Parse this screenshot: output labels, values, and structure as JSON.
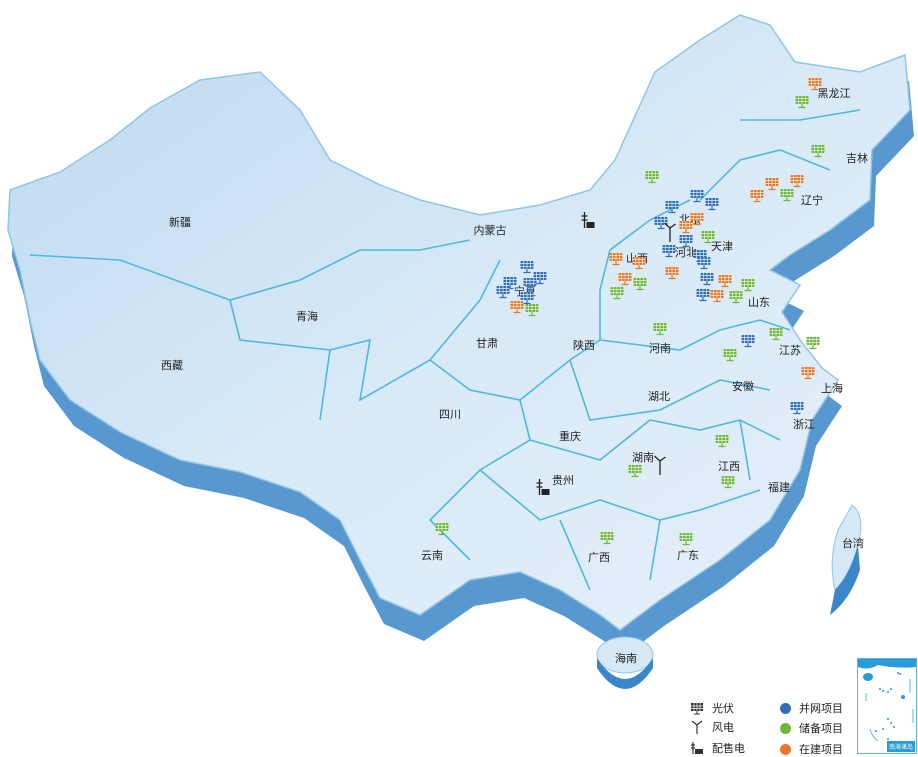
{
  "colors": {
    "grid": "#2f6fb8",
    "reserve": "#6bb83a",
    "building": "#e8782a",
    "land": "#d6e8f6",
    "border": "#4fb8e0",
    "edge": "#3b86c8"
  },
  "provinces": [
    "新疆",
    "西藏",
    "青海",
    "甘肃",
    "内蒙古",
    "宁夏",
    "陕西",
    "山西",
    "河北",
    "北京",
    "天津",
    "辽宁",
    "吉林",
    "黑龙江",
    "山东",
    "河南",
    "江苏",
    "安徽",
    "上海",
    "浙江",
    "湖北",
    "四川",
    "重庆",
    "贵州",
    "湖南",
    "江西",
    "福建",
    "云南",
    "广西",
    "广东",
    "台湾",
    "海南"
  ],
  "markers": [
    {
      "type": "solar",
      "status": "building",
      "province": "黑龙江"
    },
    {
      "type": "solar",
      "status": "reserve",
      "province": "黑龙江"
    },
    {
      "type": "solar",
      "status": "reserve",
      "province": "吉林"
    },
    {
      "type": "solar",
      "status": "building",
      "province": "辽宁"
    },
    {
      "type": "solar",
      "status": "building",
      "province": "辽宁"
    },
    {
      "type": "solar",
      "status": "reserve",
      "province": "辽宁"
    },
    {
      "type": "solar",
      "status": "building",
      "province": "辽宁"
    },
    {
      "type": "solar",
      "status": "reserve",
      "province": "内蒙古"
    },
    {
      "type": "substation",
      "status": "",
      "province": "内蒙古"
    },
    {
      "type": "solar",
      "status": "grid",
      "province": "河北"
    },
    {
      "type": "solar",
      "status": "grid",
      "province": "河北"
    },
    {
      "type": "solar",
      "status": "grid",
      "province": "河北"
    },
    {
      "type": "solar",
      "status": "building",
      "province": "北京"
    },
    {
      "type": "solar",
      "status": "building",
      "province": "北京"
    },
    {
      "type": "solar",
      "status": "grid",
      "province": "河北"
    },
    {
      "type": "wind",
      "status": "",
      "province": "河北"
    },
    {
      "type": "solar",
      "status": "grid",
      "province": "河北"
    },
    {
      "type": "solar",
      "status": "reserve",
      "province": "天津"
    },
    {
      "type": "solar",
      "status": "grid",
      "province": "河北"
    },
    {
      "type": "solar",
      "status": "grid",
      "province": "河北"
    },
    {
      "type": "solar",
      "status": "building",
      "province": "河北"
    },
    {
      "type": "solar",
      "status": "grid",
      "province": "河北"
    },
    {
      "type": "solar",
      "status": "building",
      "province": "山西"
    },
    {
      "type": "solar",
      "status": "building",
      "province": "山西"
    },
    {
      "type": "solar",
      "status": "building",
      "province": "山西"
    },
    {
      "type": "solar",
      "status": "reserve",
      "province": "山西"
    },
    {
      "type": "solar",
      "status": "reserve",
      "province": "山西"
    },
    {
      "type": "solar",
      "status": "grid",
      "province": "山东"
    },
    {
      "type": "solar",
      "status": "building",
      "province": "山东"
    },
    {
      "type": "solar",
      "status": "reserve",
      "province": "山东"
    },
    {
      "type": "solar",
      "status": "grid",
      "province": "山东"
    },
    {
      "type": "solar",
      "status": "building",
      "province": "山东"
    },
    {
      "type": "solar",
      "status": "reserve",
      "province": "山东"
    },
    {
      "type": "solar",
      "status": "grid",
      "province": "宁夏"
    },
    {
      "type": "solar",
      "status": "grid",
      "province": "宁夏"
    },
    {
      "type": "solar",
      "status": "grid",
      "province": "宁夏"
    },
    {
      "type": "solar",
      "status": "grid",
      "province": "宁夏"
    },
    {
      "type": "solar",
      "status": "grid",
      "province": "宁夏"
    },
    {
      "type": "solar",
      "status": "grid",
      "province": "宁夏"
    },
    {
      "type": "solar",
      "status": "building",
      "province": "宁夏"
    },
    {
      "type": "solar",
      "status": "reserve",
      "province": "宁夏"
    },
    {
      "type": "solar",
      "status": "reserve",
      "province": "河南"
    },
    {
      "type": "solar",
      "status": "reserve",
      "province": "江苏"
    },
    {
      "type": "solar",
      "status": "reserve",
      "province": "安徽"
    },
    {
      "type": "solar",
      "status": "grid",
      "province": "安徽"
    },
    {
      "type": "solar",
      "status": "building",
      "province": "上海"
    },
    {
      "type": "solar",
      "status": "reserve",
      "province": "上海"
    },
    {
      "type": "solar",
      "status": "grid",
      "province": "浙江"
    },
    {
      "type": "solar",
      "status": "reserve",
      "province": "江西"
    },
    {
      "type": "solar",
      "status": "reserve",
      "province": "江西"
    },
    {
      "type": "wind",
      "status": "",
      "province": "湖南"
    },
    {
      "type": "solar",
      "status": "reserve",
      "province": "湖南"
    },
    {
      "type": "substation",
      "status": "",
      "province": "贵州"
    },
    {
      "type": "solar",
      "status": "reserve",
      "province": "广西"
    },
    {
      "type": "solar",
      "status": "reserve",
      "province": "广东"
    },
    {
      "type": "solar",
      "status": "reserve",
      "province": "云南"
    }
  ],
  "legend": {
    "types": [
      {
        "icon": "solar-panel-icon",
        "label": "光伏"
      },
      {
        "icon": "wind-turbine-icon",
        "label": "风电"
      },
      {
        "icon": "substation-icon",
        "label": "配售电"
      }
    ],
    "statuses": [
      {
        "color": "#2f6fb8",
        "label": "并网项目"
      },
      {
        "color": "#6bb83a",
        "label": "储备项目"
      },
      {
        "color": "#e8782a",
        "label": "在建项目"
      }
    ]
  },
  "inset": {
    "title": "南海诸岛"
  }
}
